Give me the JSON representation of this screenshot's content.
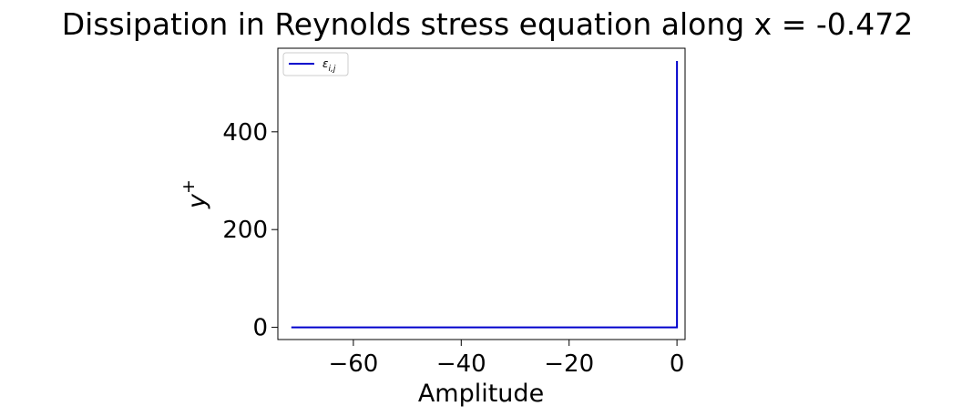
{
  "chart_data": {
    "type": "line",
    "title": "Dissipation in Reynolds stress equation along x = -0.472",
    "xlabel": "Amplitude",
    "ylabel": "y",
    "ylabel_superscript": "+",
    "xlim": [
      -74,
      1.5
    ],
    "ylim": [
      -25,
      571
    ],
    "xticks": [
      -60,
      -40,
      -20,
      0
    ],
    "xtick_labels": [
      "−60",
      "−40",
      "−20",
      "0"
    ],
    "yticks": [
      0,
      200,
      400
    ],
    "ytick_labels": [
      "0",
      "200",
      "400"
    ],
    "grid": false,
    "legend": "top-left",
    "series": [
      {
        "name": "ε",
        "name_subscript": "i,j",
        "color": "#0000cc",
        "x": [
          -71.5,
          -10,
          -1,
          0,
          0,
          0,
          0
        ],
        "y": [
          0,
          0,
          0,
          0,
          1,
          100,
          545
        ]
      }
    ]
  }
}
